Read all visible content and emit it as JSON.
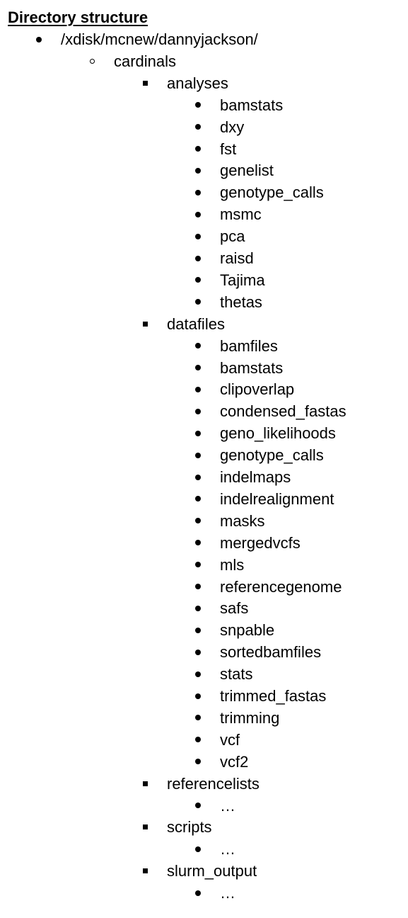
{
  "document": {
    "title": "Directory structure",
    "root": "/xdisk/mcnew/dannyjackson/",
    "project": "cardinals",
    "folders": [
      {
        "name": "analyses",
        "children": [
          "bamstats",
          "dxy",
          "fst",
          "genelist",
          "genotype_calls",
          "msmc",
          "pca",
          "raisd",
          "Tajima",
          "thetas"
        ]
      },
      {
        "name": "datafiles",
        "children": [
          "bamfiles",
          "bamstats",
          "clipoverlap",
          "condensed_fastas",
          "geno_likelihoods",
          "genotype_calls",
          "indelmaps",
          "indelrealignment",
          "masks",
          "mergedvcfs",
          "mls",
          "referencegenome",
          "safs",
          "snpable",
          "sortedbamfiles",
          "stats",
          "trimmed_fastas",
          "trimming",
          "vcf",
          "vcf2"
        ]
      },
      {
        "name": "referencelists",
        "children": [
          "…"
        ]
      },
      {
        "name": "scripts",
        "children": [
          "…"
        ]
      },
      {
        "name": "slurm_output",
        "children": [
          "…"
        ]
      }
    ]
  }
}
